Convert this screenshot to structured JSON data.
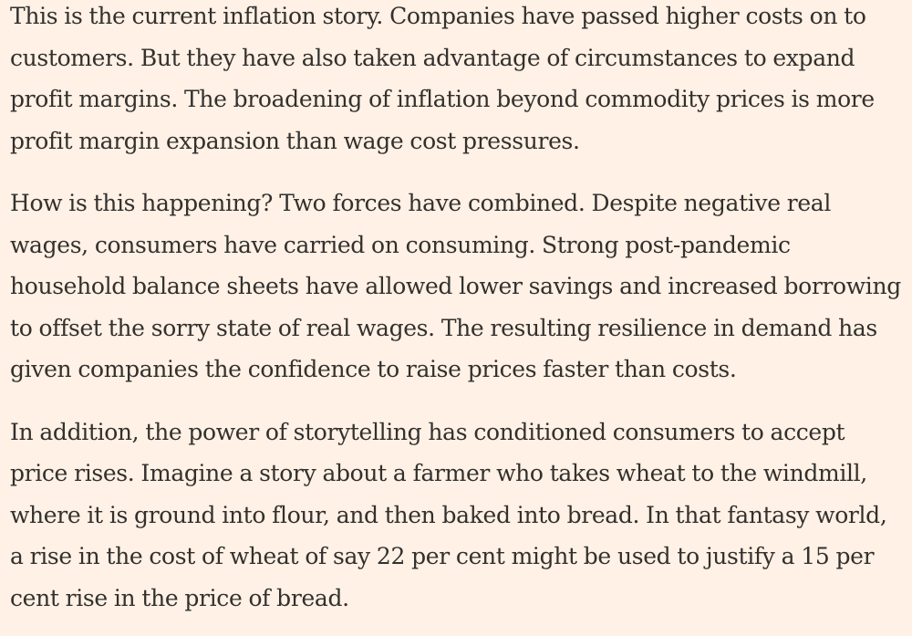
{
  "article": {
    "paragraphs": [
      {
        "lines": [
          "This is the current inflation story. Companies have passed higher costs on to",
          "customers. But they have also taken advantage of circumstances to expand",
          "profit margins. The broadening of inflation beyond commodity prices is more",
          "profit margin expansion than wage cost pressures."
        ]
      },
      {
        "lines": [
          "How is this happening? Two forces have combined. Despite negative real",
          "wages, consumers have carried on consuming. Strong post-pandemic",
          "household balance sheets have allowed lower savings and increased borrowing",
          "to offset the sorry state of real wages. The resulting resilience in demand has",
          "given companies the confidence to raise prices faster than costs."
        ]
      },
      {
        "lines": [
          "In addition, the power of storytelling has conditioned consumers to accept",
          "price rises. Imagine a story about a farmer who takes wheat to the windmill,",
          "where it is ground into flour, and then baked into bread. In that fantasy world,",
          "a rise in the cost of wheat of say 22 per cent might be used to justify a 15 per",
          "cent rise in the price of bread."
        ]
      }
    ]
  },
  "colors": {
    "background": "#fff1e5",
    "text": "#33302e"
  }
}
